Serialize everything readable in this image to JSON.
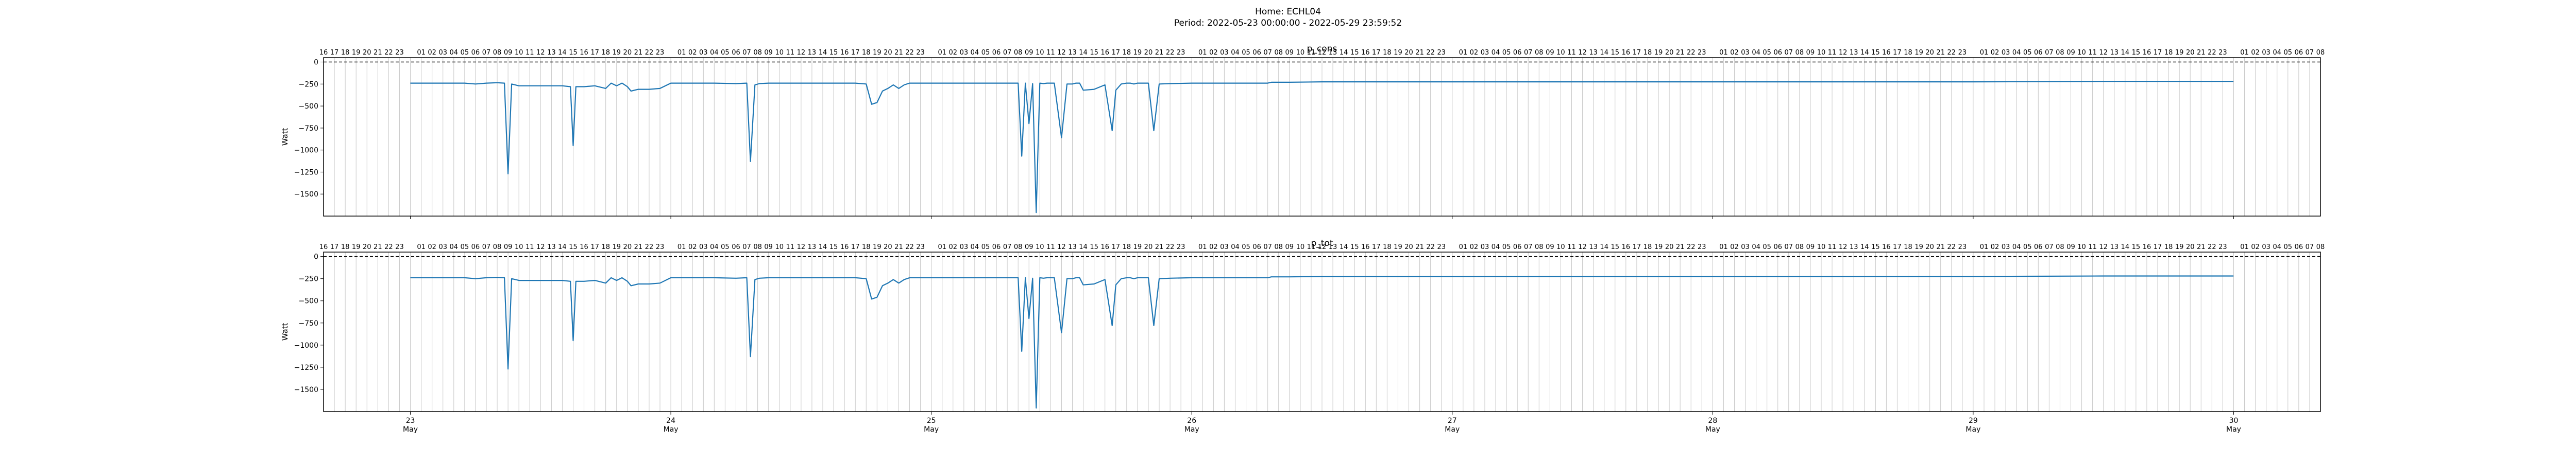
{
  "figure": {
    "suptitle_line1": "Home: ECHL04",
    "suptitle_line2": "Period: 2022-05-23 00:00:00 - 2022-05-29 23:59:52"
  },
  "colors": {
    "line": "#1f77b4",
    "hour_grid": "#c8c8c8",
    "zero_line": "#000000"
  },
  "chart_data": [
    {
      "type": "line",
      "title": "p_cons",
      "ylabel": "Watt",
      "xlabel": "",
      "x_axis": "datetime",
      "xlim": [
        "2022-05-22 16:00",
        "2022-05-30 08:00"
      ],
      "ylim": [
        -1750,
        50
      ],
      "yticks": [
        0,
        -250,
        -500,
        -750,
        -1000,
        -1250,
        -1500
      ],
      "x_ticks": [
        {
          "value": "2022-05-23",
          "day": "23",
          "month": "May"
        },
        {
          "value": "2022-05-24",
          "day": "24",
          "month": "May"
        },
        {
          "value": "2022-05-25",
          "day": "25",
          "month": "May"
        },
        {
          "value": "2022-05-26",
          "day": "26",
          "month": "May"
        },
        {
          "value": "2022-05-27",
          "day": "27",
          "month": "May"
        },
        {
          "value": "2022-05-28",
          "day": "28",
          "month": "May"
        },
        {
          "value": "2022-05-29",
          "day": "29",
          "month": "May"
        },
        {
          "value": "2022-05-30",
          "day": "30",
          "month": "May"
        }
      ],
      "hour_grid": true,
      "hline": 0,
      "series": [
        {
          "x": [
            "2022-05-23 00:00",
            "2022-05-23 05:00",
            "2022-05-23 06:00",
            "2022-05-23 07:00",
            "2022-05-23 08:00",
            "2022-05-23 08:40",
            "2022-05-23 09:00",
            "2022-05-23 09:20",
            "2022-05-23 10:00",
            "2022-05-23 12:00",
            "2022-05-23 14:00",
            "2022-05-23 14:45",
            "2022-05-23 15:00",
            "2022-05-23 15:15",
            "2022-05-23 16:00",
            "2022-05-23 17:00",
            "2022-05-23 18:00",
            "2022-05-23 18:30",
            "2022-05-23 19:00",
            "2022-05-23 19:30",
            "2022-05-23 20:00",
            "2022-05-23 20:20",
            "2022-05-23 21:00",
            "2022-05-23 22:00",
            "2022-05-23 23:00",
            "2022-05-24 00:00",
            "2022-05-24 02:00",
            "2022-05-24 04:00",
            "2022-05-24 06:00",
            "2022-05-24 07:00",
            "2022-05-24 07:20",
            "2022-05-24 07:45",
            "2022-05-24 08:10",
            "2022-05-24 09:00",
            "2022-05-24 12:00",
            "2022-05-24 15:00",
            "2022-05-24 17:00",
            "2022-05-24 18:00",
            "2022-05-24 18:30",
            "2022-05-24 19:00",
            "2022-05-24 19:30",
            "2022-05-24 20:00",
            "2022-05-24 20:30",
            "2022-05-24 21:00",
            "2022-05-24 21:30",
            "2022-05-24 22:00",
            "2022-05-24 23:00",
            "2022-05-25 02:00",
            "2022-05-25 05:00",
            "2022-05-25 07:00",
            "2022-05-25 08:00",
            "2022-05-25 08:20",
            "2022-05-25 08:40",
            "2022-05-25 09:00",
            "2022-05-25 09:20",
            "2022-05-25 09:40",
            "2022-05-25 10:00",
            "2022-05-25 10:20",
            "2022-05-25 10:40",
            "2022-05-25 11:00",
            "2022-05-25 11:20",
            "2022-05-25 12:00",
            "2022-05-25 12:30",
            "2022-05-25 13:00",
            "2022-05-25 13:20",
            "2022-05-25 13:40",
            "2022-05-25 14:00",
            "2022-05-25 15:00",
            "2022-05-25 16:00",
            "2022-05-25 16:40",
            "2022-05-25 17:00",
            "2022-05-25 17:30",
            "2022-05-25 18:00",
            "2022-05-25 18:20",
            "2022-05-25 18:40",
            "2022-05-25 19:00",
            "2022-05-25 19:30",
            "2022-05-25 20:00",
            "2022-05-25 20:30",
            "2022-05-25 21:00",
            "2022-05-25 22:00",
            "2022-05-26 00:00",
            "2022-05-26 04:00",
            "2022-05-26 06:00",
            "2022-05-26 07:00",
            "2022-05-26 07:20",
            "2022-05-26 07:40",
            "2022-05-26 08:00",
            "2022-05-26 09:00",
            "2022-05-26 12:00",
            "2022-05-26 18:00",
            "2022-05-27 00:00",
            "2022-05-27 12:00",
            "2022-05-28 00:00",
            "2022-05-28 12:00",
            "2022-05-29 00:00",
            "2022-05-29 12:00",
            "2022-05-29 23:59"
          ],
          "y": [
            -240,
            -240,
            -250,
            -240,
            -235,
            -240,
            -1270,
            -250,
            -270,
            -270,
            -270,
            -280,
            -950,
            -280,
            -280,
            -270,
            -300,
            -240,
            -270,
            -240,
            -280,
            -330,
            -310,
            -310,
            -300,
            -240,
            -240,
            -240,
            -245,
            -240,
            -1130,
            -260,
            -245,
            -240,
            -240,
            -240,
            -240,
            -250,
            -480,
            -460,
            -330,
            -300,
            -260,
            -300,
            -260,
            -240,
            -240,
            -240,
            -240,
            -240,
            -240,
            -1070,
            -240,
            -700,
            -245,
            -1710,
            -240,
            -245,
            -240,
            -240,
            -240,
            -860,
            -250,
            -250,
            -240,
            -240,
            -320,
            -310,
            -260,
            -780,
            -320,
            -250,
            -240,
            -240,
            -250,
            -240,
            -240,
            -240,
            -780,
            -250,
            -245,
            -240,
            -240,
            -240,
            -240,
            -230,
            -230,
            -230,
            -230,
            -225,
            -225,
            -225,
            -225,
            -225,
            -225,
            -225,
            -220,
            -220
          ]
        }
      ]
    },
    {
      "type": "line",
      "title": "p_tot",
      "ylabel": "Watt",
      "xlabel": "",
      "x_axis": "datetime",
      "xlim": [
        "2022-05-22 16:00",
        "2022-05-30 08:00"
      ],
      "ylim": [
        -1750,
        50
      ],
      "yticks": [
        0,
        -250,
        -500,
        -750,
        -1000,
        -1250,
        -1500
      ],
      "hour_grid": true,
      "hline": 0,
      "series": [
        {
          "x": [
            "2022-05-23 00:00",
            "2022-05-23 05:00",
            "2022-05-23 06:00",
            "2022-05-23 07:00",
            "2022-05-23 08:00",
            "2022-05-23 08:40",
            "2022-05-23 09:00",
            "2022-05-23 09:20",
            "2022-05-23 10:00",
            "2022-05-23 12:00",
            "2022-05-23 14:00",
            "2022-05-23 14:45",
            "2022-05-23 15:00",
            "2022-05-23 15:15",
            "2022-05-23 16:00",
            "2022-05-23 17:00",
            "2022-05-23 18:00",
            "2022-05-23 18:30",
            "2022-05-23 19:00",
            "2022-05-23 19:30",
            "2022-05-23 20:00",
            "2022-05-23 20:20",
            "2022-05-23 21:00",
            "2022-05-23 22:00",
            "2022-05-23 23:00",
            "2022-05-24 00:00",
            "2022-05-24 02:00",
            "2022-05-24 04:00",
            "2022-05-24 06:00",
            "2022-05-24 07:00",
            "2022-05-24 07:20",
            "2022-05-24 07:45",
            "2022-05-24 08:10",
            "2022-05-24 09:00",
            "2022-05-24 12:00",
            "2022-05-24 15:00",
            "2022-05-24 17:00",
            "2022-05-24 18:00",
            "2022-05-24 18:30",
            "2022-05-24 19:00",
            "2022-05-24 19:30",
            "2022-05-24 20:00",
            "2022-05-24 20:30",
            "2022-05-24 21:00",
            "2022-05-24 21:30",
            "2022-05-24 22:00",
            "2022-05-24 23:00",
            "2022-05-25 02:00",
            "2022-05-25 05:00",
            "2022-05-25 07:00",
            "2022-05-25 08:00",
            "2022-05-25 08:20",
            "2022-05-25 08:40",
            "2022-05-25 09:00",
            "2022-05-25 09:20",
            "2022-05-25 09:40",
            "2022-05-25 10:00",
            "2022-05-25 10:20",
            "2022-05-25 10:40",
            "2022-05-25 11:00",
            "2022-05-25 11:20",
            "2022-05-25 12:00",
            "2022-05-25 12:30",
            "2022-05-25 13:00",
            "2022-05-25 13:20",
            "2022-05-25 13:40",
            "2022-05-25 14:00",
            "2022-05-25 15:00",
            "2022-05-25 16:00",
            "2022-05-25 16:40",
            "2022-05-25 17:00",
            "2022-05-25 17:30",
            "2022-05-25 18:00",
            "2022-05-25 18:20",
            "2022-05-25 18:40",
            "2022-05-25 19:00",
            "2022-05-25 19:30",
            "2022-05-25 20:00",
            "2022-05-25 20:30",
            "2022-05-25 21:00",
            "2022-05-25 22:00",
            "2022-05-26 00:00",
            "2022-05-26 04:00",
            "2022-05-26 06:00",
            "2022-05-26 07:00",
            "2022-05-26 07:20",
            "2022-05-26 07:40",
            "2022-05-26 08:00",
            "2022-05-26 09:00",
            "2022-05-26 12:00",
            "2022-05-26 18:00",
            "2022-05-27 00:00",
            "2022-05-27 12:00",
            "2022-05-28 00:00",
            "2022-05-28 12:00",
            "2022-05-29 00:00",
            "2022-05-29 12:00",
            "2022-05-29 23:59"
          ],
          "y": [
            -240,
            -240,
            -250,
            -240,
            -235,
            -240,
            -1270,
            -250,
            -270,
            -270,
            -270,
            -280,
            -950,
            -280,
            -280,
            -270,
            -300,
            -240,
            -270,
            -240,
            -280,
            -330,
            -310,
            -310,
            -300,
            -240,
            -240,
            -240,
            -245,
            -240,
            -1130,
            -260,
            -245,
            -240,
            -240,
            -240,
            -240,
            -250,
            -480,
            -460,
            -330,
            -300,
            -260,
            -300,
            -260,
            -240,
            -240,
            -240,
            -240,
            -240,
            -240,
            -1070,
            -240,
            -700,
            -245,
            -1710,
            -240,
            -245,
            -240,
            -240,
            -240,
            -860,
            -250,
            -250,
            -240,
            -240,
            -320,
            -310,
            -260,
            -780,
            -320,
            -250,
            -240,
            -240,
            -250,
            -240,
            -240,
            -240,
            -780,
            -250,
            -245,
            -240,
            -240,
            -240,
            -240,
            -230,
            -230,
            -230,
            -230,
            -225,
            -225,
            -225,
            -225,
            -225,
            -225,
            -225,
            -220,
            -220
          ]
        }
      ]
    }
  ]
}
